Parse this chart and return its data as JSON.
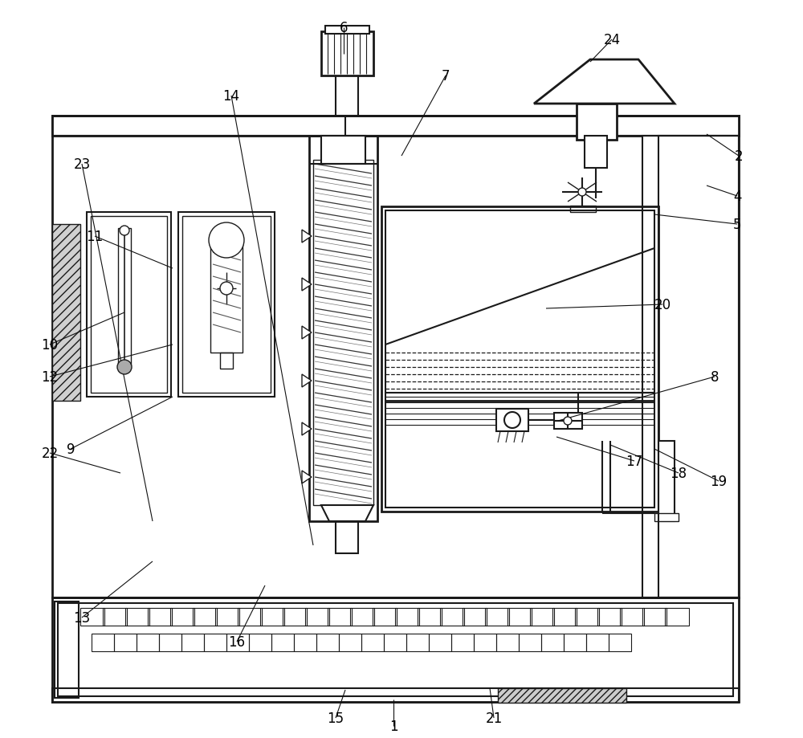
{
  "bg_color": "#ffffff",
  "lc": "#1a1a1a",
  "fig_width": 10.0,
  "fig_height": 9.2,
  "dpi": 100
}
